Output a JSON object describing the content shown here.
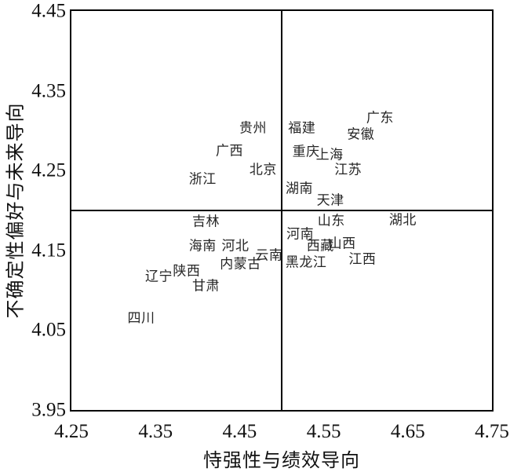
{
  "chart_data": {
    "type": "scatter",
    "title": "",
    "xlabel": "恃强性与绩效导向",
    "ylabel": "不确定性偏好与未来导向",
    "xlim": [
      4.25,
      4.75
    ],
    "ylim": [
      3.95,
      4.45
    ],
    "grid": false,
    "legend": "none",
    "x_ticks": [
      {
        "label": "4.25",
        "value": 4.25
      },
      {
        "label": "4.35",
        "value": 4.35
      },
      {
        "label": "4.45",
        "value": 4.45
      },
      {
        "label": "4.55",
        "value": 4.55
      },
      {
        "label": "4.65",
        "value": 4.65
      },
      {
        "label": "4.75",
        "value": 4.75
      }
    ],
    "y_ticks": [
      {
        "label": "4.45",
        "value": 4.45
      },
      {
        "label": "4.35",
        "value": 4.35
      },
      {
        "label": "4.25",
        "value": 4.25
      },
      {
        "label": "4.15",
        "value": 4.15
      },
      {
        "label": "4.05",
        "value": 4.05
      },
      {
        "label": "3.95",
        "value": 3.95
      }
    ],
    "quadrant_divider_x": 4.5,
    "quadrant_divider_y": 4.2,
    "points": [
      {
        "name": "贵州",
        "x": 4.466,
        "y": 4.303
      },
      {
        "name": "福建",
        "x": 4.524,
        "y": 4.303
      },
      {
        "name": "广东",
        "x": 4.617,
        "y": 4.316
      },
      {
        "name": "安徽",
        "x": 4.594,
        "y": 4.295
      },
      {
        "name": "广西",
        "x": 4.438,
        "y": 4.275
      },
      {
        "name": "重庆",
        "x": 4.529,
        "y": 4.274
      },
      {
        "name": "上海",
        "x": 4.557,
        "y": 4.27
      },
      {
        "name": "北京",
        "x": 4.478,
        "y": 4.251
      },
      {
        "name": "江苏",
        "x": 4.579,
        "y": 4.251
      },
      {
        "name": "浙江",
        "x": 4.406,
        "y": 4.239
      },
      {
        "name": "湖南",
        "x": 4.521,
        "y": 4.228
      },
      {
        "name": "天津",
        "x": 4.558,
        "y": 4.213
      },
      {
        "name": "吉林",
        "x": 4.41,
        "y": 4.186
      },
      {
        "name": "山东",
        "x": 4.559,
        "y": 4.187
      },
      {
        "name": "湖北",
        "x": 4.644,
        "y": 4.188
      },
      {
        "name": "河南",
        "x": 4.522,
        "y": 4.17
      },
      {
        "name": "海南",
        "x": 4.406,
        "y": 4.156
      },
      {
        "name": "河北",
        "x": 4.445,
        "y": 4.156
      },
      {
        "name": "西藏",
        "x": 4.546,
        "y": 4.156
      },
      {
        "name": "山西",
        "x": 4.572,
        "y": 4.159
      },
      {
        "name": "云南",
        "x": 4.485,
        "y": 4.144
      },
      {
        "name": "内蒙古",
        "x": 4.451,
        "y": 4.133
      },
      {
        "name": "黑龙江",
        "x": 4.529,
        "y": 4.135
      },
      {
        "name": "江西",
        "x": 4.596,
        "y": 4.139
      },
      {
        "name": "陕西",
        "x": 4.387,
        "y": 4.124
      },
      {
        "name": "辽宁",
        "x": 4.354,
        "y": 4.117
      },
      {
        "name": "甘肃",
        "x": 4.41,
        "y": 4.106
      },
      {
        "name": "四川",
        "x": 4.333,
        "y": 4.065
      }
    ]
  },
  "colors": {
    "frame": "#000000",
    "label_text": "#262626",
    "tick_text": "#111111",
    "background": "#ffffff"
  }
}
